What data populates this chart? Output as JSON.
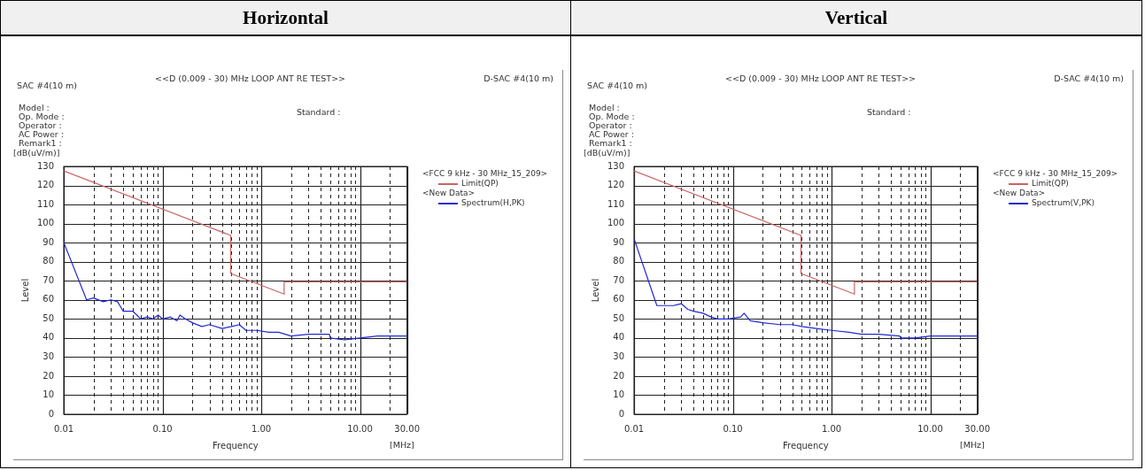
{
  "chart_data": [
    {
      "type": "line",
      "title": "Horizontal",
      "xlabel": "Frequency",
      "ylabel": "Level",
      "legend_title": "<FCC 9 kHz - 30 MHz_15_209>",
      "log": "x",
      "grid": true,
      "legend": "right",
      "xlim": [
        0.01,
        30
      ],
      "ylim": [
        0,
        130
      ],
      "xticks": [
        {
          "value": 0.01,
          "label": "0.01"
        },
        {
          "value": 0.02,
          "label": null
        },
        {
          "value": 0.03,
          "label": null
        },
        {
          "value": 0.04,
          "label": null
        },
        {
          "value": 0.05,
          "label": null
        },
        {
          "value": 0.06,
          "label": null
        },
        {
          "value": 0.07,
          "label": null
        },
        {
          "value": 0.08,
          "label": null
        },
        {
          "value": 0.09,
          "label": null
        },
        {
          "value": 0.1,
          "label": "0.10"
        },
        {
          "value": 0.2,
          "label": null
        },
        {
          "value": 0.3,
          "label": null
        },
        {
          "value": 0.4,
          "label": null
        },
        {
          "value": 0.5,
          "label": null
        },
        {
          "value": 0.6,
          "label": null
        },
        {
          "value": 0.7,
          "label": null
        },
        {
          "value": 0.8,
          "label": null
        },
        {
          "value": 0.9,
          "label": null
        },
        {
          "value": 1,
          "label": "1.00"
        },
        {
          "value": 2,
          "label": null
        },
        {
          "value": 3,
          "label": null
        },
        {
          "value": 4,
          "label": null
        },
        {
          "value": 5,
          "label": null
        },
        {
          "value": 6,
          "label": null
        },
        {
          "value": 7,
          "label": null
        },
        {
          "value": 8,
          "label": null
        },
        {
          "value": 9,
          "label": null
        },
        {
          "value": 10,
          "label": "10.00"
        },
        {
          "value": 20,
          "label": null
        },
        {
          "value": 30,
          "label": "30.00"
        }
      ],
      "yticks": [
        0,
        10,
        20,
        30,
        40,
        50,
        60,
        70,
        80,
        90,
        100,
        110,
        120,
        130
      ],
      "series": [
        {
          "name": "Limit(QP)",
          "color": "#c86464",
          "x": [
            0.01,
            0.49,
            0.49,
            1.705,
            1.705,
            30
          ],
          "values": [
            127.6,
            93.8,
            73.8,
            63,
            69.5,
            69.5
          ]
        },
        {
          "name": "Spectrum(H,PK)",
          "color": "#1f28d8",
          "x": [
            0.01,
            0.017,
            0.02,
            0.025,
            0.03,
            0.035,
            0.04,
            0.05,
            0.055,
            0.06,
            0.07,
            0.08,
            0.09,
            0.1,
            0.12,
            0.14,
            0.15,
            0.17,
            0.2,
            0.25,
            0.3,
            0.4,
            0.5,
            0.6,
            0.7,
            0.9,
            1.2,
            1.5,
            2,
            3,
            4.9,
            5,
            7,
            10,
            15,
            20,
            30
          ],
          "values": [
            90,
            60,
            61,
            59,
            60,
            59,
            54,
            54,
            52,
            50,
            51,
            50,
            52,
            50,
            51,
            49,
            52,
            50,
            48,
            46,
            47,
            45,
            46,
            47,
            44,
            44,
            43,
            43,
            41,
            42,
            42,
            40,
            39,
            40,
            41,
            41,
            41
          ]
        }
      ],
      "annotations": [
        "SAC #4(10 m)",
        "<<D (0.009 - 30) MHz LOOP ANT RE TEST>>",
        "D-SAC #4(10 m)",
        "Model :",
        "Op. Mode :",
        "Operator :",
        "AC Power :",
        "Remark1 :",
        "Standard :",
        "<New Data>",
        "[dB(uV/m)]",
        "[MHz]"
      ]
    },
    {
      "type": "line",
      "title": "Vertical",
      "xlabel": "Frequency",
      "ylabel": "Level",
      "legend_title": "<FCC 9 kHz - 30 MHz_15_209>",
      "log": "x",
      "grid": true,
      "legend": "right",
      "xlim": [
        0.01,
        30
      ],
      "ylim": [
        0,
        130
      ],
      "xticks": [
        {
          "value": 0.01,
          "label": "0.01"
        },
        {
          "value": 0.02,
          "label": null
        },
        {
          "value": 0.03,
          "label": null
        },
        {
          "value": 0.04,
          "label": null
        },
        {
          "value": 0.05,
          "label": null
        },
        {
          "value": 0.06,
          "label": null
        },
        {
          "value": 0.07,
          "label": null
        },
        {
          "value": 0.08,
          "label": null
        },
        {
          "value": 0.09,
          "label": null
        },
        {
          "value": 0.1,
          "label": "0.10"
        },
        {
          "value": 0.2,
          "label": null
        },
        {
          "value": 0.3,
          "label": null
        },
        {
          "value": 0.4,
          "label": null
        },
        {
          "value": 0.5,
          "label": null
        },
        {
          "value": 0.6,
          "label": null
        },
        {
          "value": 0.7,
          "label": null
        },
        {
          "value": 0.8,
          "label": null
        },
        {
          "value": 0.9,
          "label": null
        },
        {
          "value": 1,
          "label": "1.00"
        },
        {
          "value": 2,
          "label": null
        },
        {
          "value": 3,
          "label": null
        },
        {
          "value": 4,
          "label": null
        },
        {
          "value": 5,
          "label": null
        },
        {
          "value": 6,
          "label": null
        },
        {
          "value": 7,
          "label": null
        },
        {
          "value": 8,
          "label": null
        },
        {
          "value": 9,
          "label": null
        },
        {
          "value": 10,
          "label": "10.00"
        },
        {
          "value": 20,
          "label": null
        },
        {
          "value": 30,
          "label": "30.00"
        }
      ],
      "yticks": [
        0,
        10,
        20,
        30,
        40,
        50,
        60,
        70,
        80,
        90,
        100,
        110,
        120,
        130
      ],
      "series": [
        {
          "name": "Limit(QP)",
          "color": "#c86464",
          "x": [
            0.01,
            0.49,
            0.49,
            1.705,
            1.705,
            30
          ],
          "values": [
            127.6,
            93.8,
            73.8,
            63,
            69.5,
            69.5
          ]
        },
        {
          "name": "Spectrum(V,PK)",
          "color": "#1f28d8",
          "x": [
            0.01,
            0.017,
            0.02,
            0.025,
            0.03,
            0.035,
            0.04,
            0.05,
            0.06,
            0.07,
            0.09,
            0.12,
            0.13,
            0.15,
            0.2,
            0.3,
            0.4,
            0.5,
            0.7,
            1,
            1.5,
            2,
            3,
            4.9,
            5,
            7,
            10,
            20,
            30
          ],
          "values": [
            92,
            57,
            57,
            57,
            58,
            55,
            54,
            53,
            51,
            50,
            50,
            51,
            53,
            49,
            48,
            47,
            47,
            46,
            45,
            44,
            43,
            42,
            42,
            41,
            40,
            40,
            41,
            41,
            41
          ]
        }
      ],
      "annotations": [
        "SAC #4(10 m)",
        "<<D (0.009 - 30) MHz LOOP ANT RE TEST>>",
        "D-SAC #4(10 m)",
        "Model :",
        "Op. Mode :",
        "Operator :",
        "AC Power :",
        "Remark1 :",
        "Standard :",
        "<New Data>",
        "[dB(uV/m)]",
        "[MHz]"
      ]
    }
  ]
}
